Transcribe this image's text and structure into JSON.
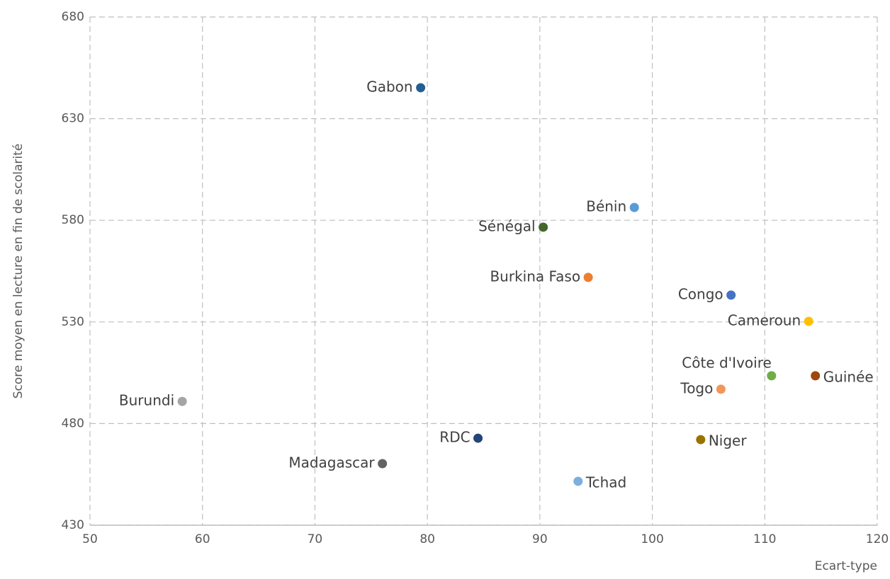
{
  "chart_data": {
    "type": "scatter",
    "x_label": "Ecart-type",
    "y_label": "Score moyen en lecture en fin de scolarité",
    "xlim": [
      50,
      120
    ],
    "xticks": [
      50,
      60,
      70,
      80,
      90,
      100,
      110,
      120
    ],
    "ylim": [
      430,
      680
    ],
    "yticks": [
      430,
      480,
      530,
      580,
      630,
      680
    ],
    "grid": true,
    "points": [
      {
        "label": "Gabon",
        "x": 79.4,
        "y": 645.2,
        "color": "#255e91"
      },
      {
        "label": "Bénin",
        "x": 98.4,
        "y": 586.3,
        "color": "#5b9bd5"
      },
      {
        "label": "Sénégal",
        "x": 90.3,
        "y": 576.6,
        "color": "#43682b"
      },
      {
        "label": "Burkina Faso",
        "x": 94.3,
        "y": 551.9,
        "color": "#ed7d31"
      },
      {
        "label": "Congo",
        "x": 107.0,
        "y": 543.2,
        "color": "#4472c4"
      },
      {
        "label": "Cameroun",
        "x": 113.9,
        "y": 530.3,
        "color": "#ffc000"
      },
      {
        "label": "Côte d'Ivoire",
        "x": 110.6,
        "y": 503.5,
        "color": "#70ad47"
      },
      {
        "label": "Guinée",
        "x": 114.5,
        "y": 503.5,
        "color": "#9e480e"
      },
      {
        "label": "Togo",
        "x": 106.1,
        "y": 496.9,
        "color": "#f1975a"
      },
      {
        "label": "Burundi",
        "x": 58.2,
        "y": 490.9,
        "color": "#a5a5a5"
      },
      {
        "label": "RDC",
        "x": 84.5,
        "y": 472.8,
        "color": "#264478"
      },
      {
        "label": "Niger",
        "x": 104.3,
        "y": 472.1,
        "color": "#997300"
      },
      {
        "label": "Madagascar",
        "x": 76.0,
        "y": 460.3,
        "color": "#636363"
      },
      {
        "label": "Tchad",
        "x": 93.4,
        "y": 451.6,
        "color": "#7cafdd"
      }
    ]
  }
}
